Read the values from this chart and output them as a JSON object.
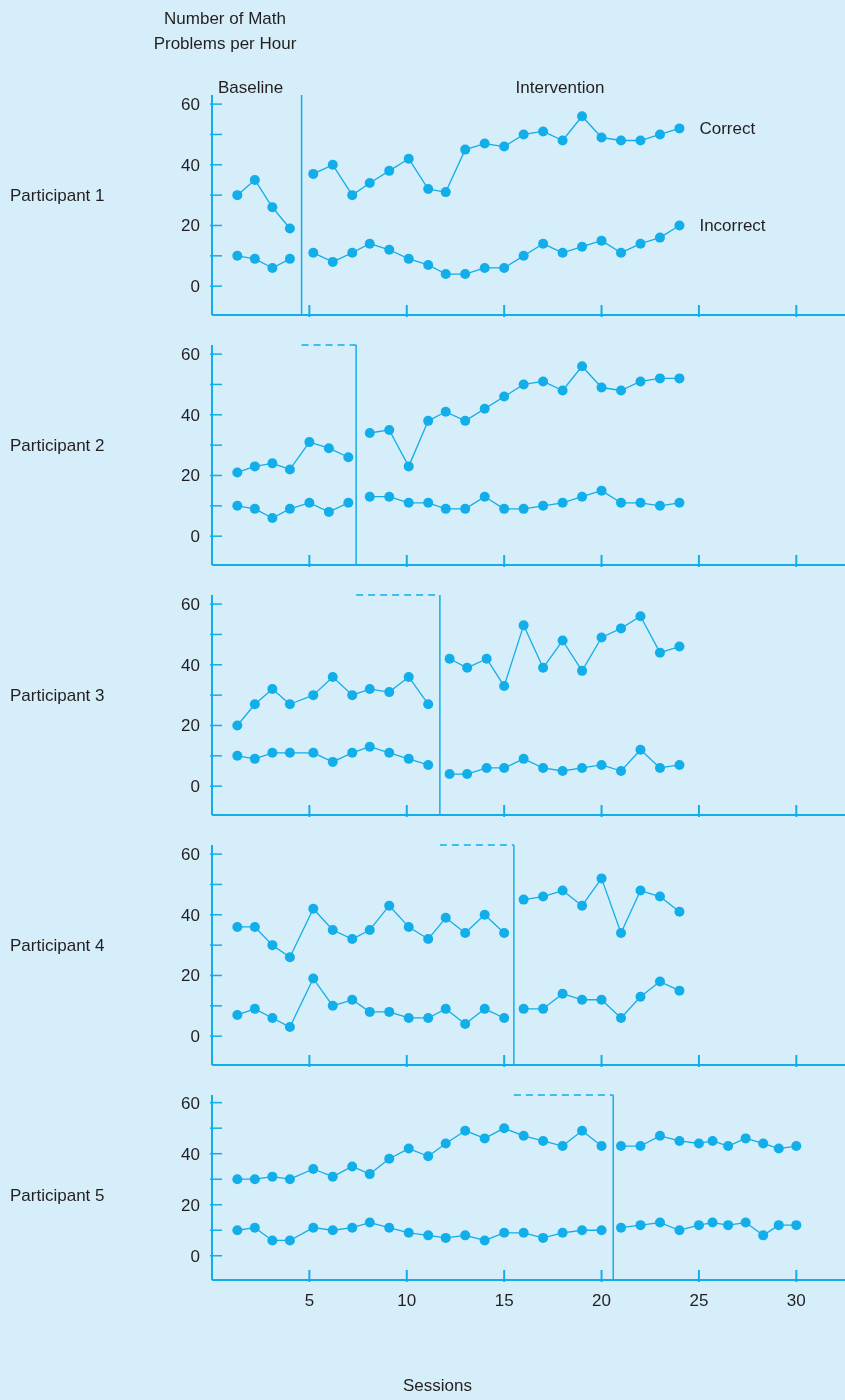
{
  "chart_data": [
    {
      "type": "line",
      "title": "Participant 1",
      "ylabel": "Number of Math Problems per Hour",
      "annotations": [
        "Baseline",
        "Intervention"
      ],
      "xlim": [
        0,
        32.5
      ],
      "xticks": [
        5,
        10,
        15,
        20,
        25,
        30
      ],
      "ylim": [
        -9.5,
        63
      ],
      "yticks": [
        0,
        {
          "value": 10,
          "label": null
        },
        20,
        {
          "value": 30,
          "label": null
        },
        40,
        {
          "value": 50,
          "label": null
        },
        60
      ],
      "tick_labels": "y",
      "marker": "circle",
      "line_style": "solid",
      "ref_lines": [
        {
          "axis": "x",
          "value": 4.6,
          "color": "#12aeea"
        }
      ],
      "series": [
        {
          "color": "#12aeea",
          "x": [
            1.3,
            2.2,
            3.1,
            4
          ],
          "values": [
            30,
            35,
            26,
            19
          ]
        },
        {
          "name": "Correct",
          "color": "#12aeea",
          "x": [
            5.2,
            6.2,
            7.2,
            8.1,
            9.1,
            10.1,
            11.1,
            12,
            13,
            14,
            15,
            16,
            17,
            18,
            19,
            20,
            21,
            22,
            23,
            24
          ],
          "values": [
            37,
            40,
            30,
            34,
            38,
            42,
            32,
            31,
            45,
            47,
            46,
            50,
            51,
            48,
            56,
            49,
            48,
            48,
            50,
            52
          ]
        },
        {
          "color": "#12aeea",
          "x": [
            1.3,
            2.2,
            3.1,
            4
          ],
          "values": [
            10,
            9,
            6,
            9
          ]
        },
        {
          "name": "Incorrect",
          "color": "#12aeea",
          "x": [
            5.2,
            6.2,
            7.2,
            8.1,
            9.1,
            10.1,
            11.1,
            12,
            13,
            14,
            15,
            16,
            17,
            18,
            19,
            20,
            21,
            22,
            23,
            24
          ],
          "values": [
            11,
            8,
            11,
            14,
            12,
            9,
            7,
            4,
            4,
            6,
            6,
            10,
            14,
            11,
            13,
            15,
            11,
            14,
            16,
            20
          ]
        }
      ]
    },
    {
      "type": "line",
      "title": "Participant 2",
      "xlim": [
        0,
        32.5
      ],
      "xticks": [
        5,
        10,
        15,
        20,
        25,
        30
      ],
      "ylim": [
        -9.5,
        63
      ],
      "yticks": [
        0,
        {
          "value": 10,
          "label": null
        },
        20,
        {
          "value": 30,
          "label": null
        },
        40,
        {
          "value": 50,
          "label": null
        },
        60
      ],
      "tick_labels": "y",
      "marker": "circle",
      "line_style": "solid",
      "ref_lines": [
        {
          "axis": "x",
          "value": 7.4,
          "color": "#12aeea"
        }
      ],
      "series": [
        {
          "color": "#12aeea",
          "x": [
            1.3,
            2.2,
            3.1,
            4,
            5,
            6,
            7
          ],
          "values": [
            21,
            23,
            24,
            22,
            31,
            29,
            26
          ]
        },
        {
          "color": "#12aeea",
          "x": [
            8.1,
            9.1,
            10.1,
            11.1,
            12,
            13,
            14,
            15,
            16,
            17,
            18,
            19,
            20,
            21,
            22,
            23,
            24
          ],
          "values": [
            34,
            35,
            23,
            38,
            41,
            38,
            42,
            46,
            50,
            51,
            48,
            56,
            49,
            48,
            51,
            52,
            52
          ]
        },
        {
          "color": "#12aeea",
          "x": [
            1.3,
            2.2,
            3.1,
            4,
            5,
            6,
            7
          ],
          "values": [
            10,
            9,
            6,
            9,
            11,
            8,
            11
          ]
        },
        {
          "color": "#12aeea",
          "x": [
            8.1,
            9.1,
            10.1,
            11.1,
            12,
            13,
            14,
            15,
            16,
            17,
            18,
            19,
            20,
            21,
            22,
            23,
            24
          ],
          "values": [
            13,
            13,
            11,
            11,
            9,
            9,
            13,
            9,
            9,
            10,
            11,
            13,
            15,
            11,
            11,
            10,
            11
          ]
        }
      ]
    },
    {
      "type": "line",
      "title": "Participant 3",
      "xlim": [
        0,
        32.5
      ],
      "xticks": [
        5,
        10,
        15,
        20,
        25,
        30
      ],
      "ylim": [
        -9.5,
        63
      ],
      "yticks": [
        0,
        {
          "value": 10,
          "label": null
        },
        20,
        {
          "value": 30,
          "label": null
        },
        40,
        {
          "value": 50,
          "label": null
        },
        60
      ],
      "tick_labels": "y",
      "marker": "circle",
      "line_style": "solid",
      "ref_lines": [
        {
          "axis": "x",
          "value": 11.7,
          "color": "#12aeea"
        }
      ],
      "series": [
        {
          "color": "#12aeea",
          "x": [
            1.3,
            2.2,
            3.1,
            4,
            5.2,
            6.2,
            7.2,
            8.1,
            9.1,
            10.1,
            11.1
          ],
          "values": [
            20,
            27,
            32,
            27,
            30,
            36,
            30,
            32,
            31,
            36,
            27
          ]
        },
        {
          "color": "#12aeea",
          "x": [
            12.2,
            13.1,
            14.1,
            15,
            16,
            17,
            18,
            19,
            20,
            21,
            22,
            23,
            24
          ],
          "values": [
            42,
            39,
            42,
            33,
            53,
            39,
            48,
            38,
            49,
            52,
            56,
            44,
            46
          ]
        },
        {
          "color": "#12aeea",
          "x": [
            1.3,
            2.2,
            3.1,
            4,
            5.2,
            6.2,
            7.2,
            8.1,
            9.1,
            10.1,
            11.1
          ],
          "values": [
            10,
            9,
            11,
            11,
            11,
            8,
            11,
            13,
            11,
            9,
            7
          ]
        },
        {
          "color": "#12aeea",
          "x": [
            12.2,
            13.1,
            14.1,
            15,
            16,
            17,
            18,
            19,
            20,
            21,
            22,
            23,
            24
          ],
          "values": [
            4,
            4,
            6,
            6,
            9,
            6,
            5,
            6,
            7,
            5,
            12,
            6,
            7
          ]
        }
      ]
    },
    {
      "type": "line",
      "title": "Participant 4",
      "xlim": [
        0,
        32.5
      ],
      "xticks": [
        5,
        10,
        15,
        20,
        25,
        30
      ],
      "ylim": [
        -9.5,
        63
      ],
      "yticks": [
        0,
        {
          "value": 10,
          "label": null
        },
        20,
        {
          "value": 30,
          "label": null
        },
        40,
        {
          "value": 50,
          "label": null
        },
        60
      ],
      "tick_labels": "y",
      "marker": "circle",
      "line_style": "solid",
      "ref_lines": [
        {
          "axis": "x",
          "value": 15.5,
          "color": "#12aeea"
        }
      ],
      "series": [
        {
          "color": "#12aeea",
          "x": [
            1.3,
            2.2,
            3.1,
            4,
            5.2,
            6.2,
            7.2,
            8.1,
            9.1,
            10.1,
            11.1,
            12,
            13,
            14,
            15
          ],
          "values": [
            36,
            36,
            30,
            26,
            42,
            35,
            32,
            35,
            43,
            36,
            32,
            39,
            34,
            40,
            34
          ]
        },
        {
          "color": "#12aeea",
          "x": [
            16,
            17,
            18,
            19,
            20,
            21,
            22,
            23,
            24
          ],
          "values": [
            45,
            46,
            48,
            43,
            52,
            34,
            48,
            46,
            41
          ]
        },
        {
          "color": "#12aeea",
          "x": [
            1.3,
            2.2,
            3.1,
            4,
            5.2,
            6.2,
            7.2,
            8.1,
            9.1,
            10.1,
            11.1,
            12,
            13,
            14,
            15
          ],
          "values": [
            7,
            9,
            6,
            3,
            19,
            10,
            12,
            8,
            8,
            6,
            6,
            9,
            4,
            9,
            6
          ]
        },
        {
          "color": "#12aeea",
          "x": [
            16,
            17,
            18,
            19,
            20,
            21,
            22,
            23,
            24
          ],
          "values": [
            9,
            9,
            14,
            12,
            12,
            6,
            13,
            18,
            15
          ]
        }
      ]
    },
    {
      "type": "line",
      "title": "Participant 5",
      "xlabel": "Sessions",
      "xlim": [
        0,
        32.5
      ],
      "xticks": [
        5,
        10,
        15,
        20,
        25,
        30
      ],
      "ylim": [
        -9.5,
        63
      ],
      "yticks": [
        0,
        {
          "value": 10,
          "label": null
        },
        20,
        {
          "value": 30,
          "label": null
        },
        40,
        {
          "value": 50,
          "label": null
        },
        60
      ],
      "marker": "circle",
      "line_style": "solid",
      "ref_lines": [
        {
          "axis": "x",
          "value": 20.6,
          "color": "#12aeea"
        }
      ],
      "series": [
        {
          "color": "#12aeea",
          "x": [
            1.3,
            2.2,
            3.1,
            4,
            5.2,
            6.2,
            7.2,
            8.1,
            9.1,
            10.1,
            11.1,
            12,
            13,
            14,
            15,
            16,
            17,
            18,
            19,
            20
          ],
          "values": [
            30,
            30,
            31,
            30,
            34,
            31,
            35,
            32,
            38,
            42,
            39,
            44,
            49,
            46,
            50,
            47,
            45,
            43,
            49,
            43
          ]
        },
        {
          "color": "#12aeea",
          "x": [
            21,
            22,
            23,
            24,
            25,
            25.7,
            26.5,
            27.4,
            28.3,
            29.1,
            30
          ],
          "values": [
            43,
            43,
            47,
            45,
            44,
            45,
            43,
            46,
            44,
            42,
            43
          ]
        },
        {
          "color": "#12aeea",
          "x": [
            1.3,
            2.2,
            3.1,
            4,
            5.2,
            6.2,
            7.2,
            8.1,
            9.1,
            10.1,
            11.1,
            12,
            13,
            14,
            15,
            16,
            17,
            18,
            19,
            20
          ],
          "values": [
            10,
            11,
            6,
            6,
            11,
            10,
            11,
            13,
            11,
            9,
            8,
            7,
            8,
            6,
            9,
            9,
            7,
            9,
            10,
            10
          ]
        },
        {
          "color": "#12aeea",
          "x": [
            21,
            22,
            23,
            24,
            25,
            25.7,
            26.5,
            27.4,
            28.3,
            29.1,
            30
          ],
          "values": [
            11,
            12,
            13,
            10,
            12,
            13,
            12,
            13,
            8,
            12,
            12
          ]
        }
      ]
    }
  ]
}
